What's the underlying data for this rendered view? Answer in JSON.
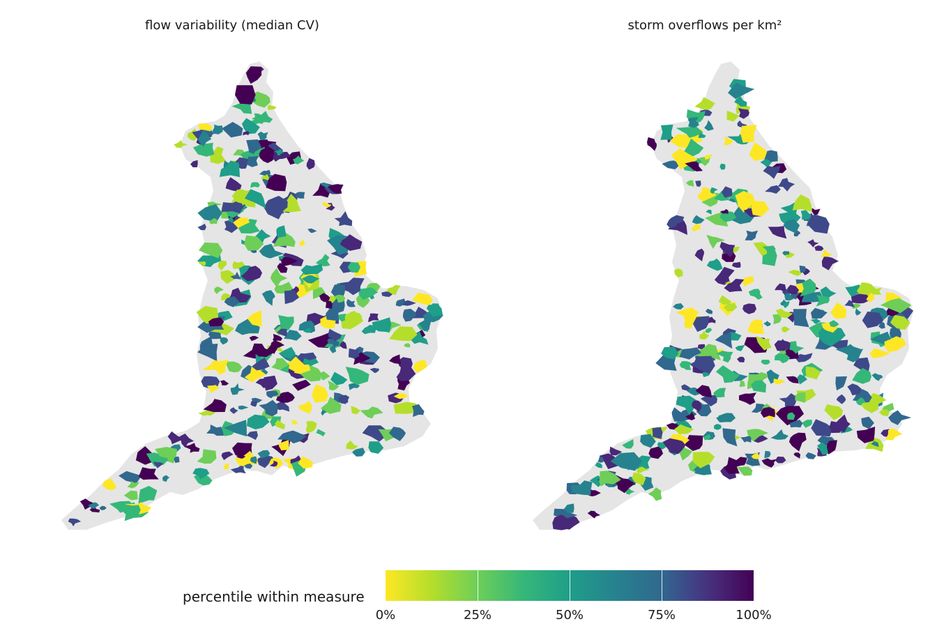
{
  "panels": [
    {
      "title": "flow variability (median CV)",
      "seed": 7
    },
    {
      "title": "storm overflows per km²",
      "seed": 23
    }
  ],
  "legend": {
    "title": "percentile within measure",
    "ticks": [
      "0%",
      "25%",
      "50%",
      "75%",
      "100%"
    ],
    "tick_values": [
      0,
      0.25,
      0.5,
      0.75,
      1.0
    ],
    "colormap": [
      "#fde725",
      "#b5de2b",
      "#6ece58",
      "#35b779",
      "#1f9e89",
      "#26828e",
      "#31688e",
      "#3e4989",
      "#482878",
      "#440154"
    ]
  },
  "colors": {
    "land": "#e5e5e5",
    "background": "#ffffff"
  }
}
